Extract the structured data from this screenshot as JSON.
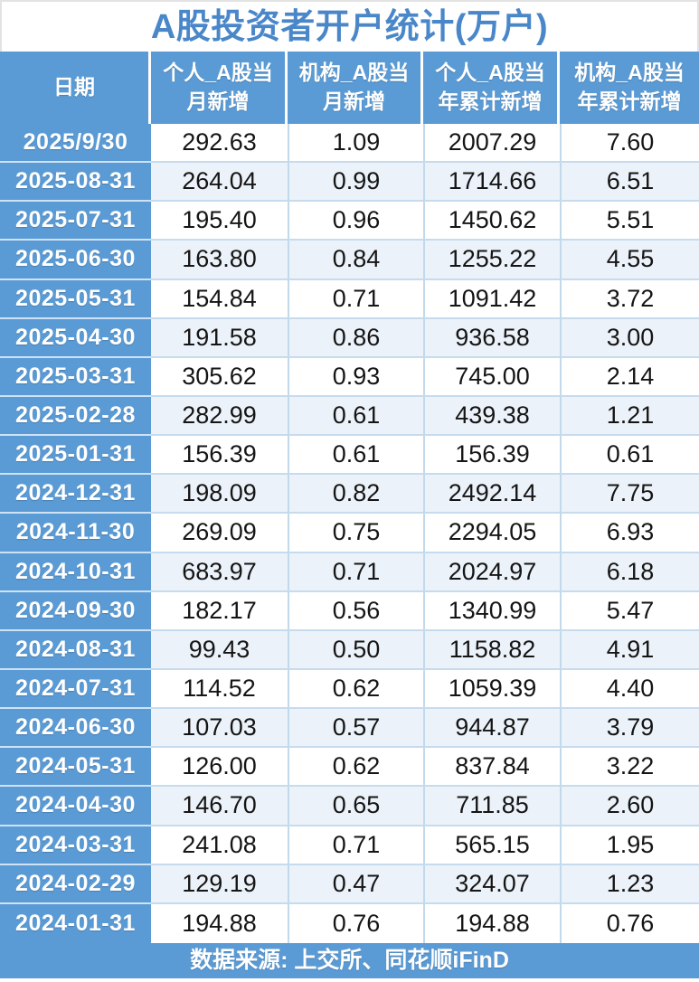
{
  "title": "A股投资者开户统计(万户)",
  "header_display": [
    "日期",
    "个人_A股当\n月新增",
    "机构_A股当\n月新增",
    "个人_A股当\n年累计新增",
    "机构_A股当\n年累计新增"
  ],
  "footer": {
    "source_label": "数据来源: 上交所、同花顺iFinD"
  },
  "colors": {
    "accent_blue": "#5b9bd5",
    "alt_row_blue": "#ecf2f9",
    "gridline_blue": "#c2d9ec",
    "title_text_blue": "#4a87c9",
    "header_text": "#ffffff",
    "value_text": "#151515"
  },
  "chart_data": {
    "type": "table",
    "title": "A股投资者开户统计(万户)",
    "columns": [
      "日期",
      "个人_A股当月新增",
      "机构_A股当月新增",
      "个人_A股当年累计新增",
      "机构_A股当年累计新增"
    ],
    "rows": [
      [
        "2025/9/30",
        "292.63",
        "1.09",
        "2007.29",
        "7.60"
      ],
      [
        "2025-08-31",
        "264.04",
        "0.99",
        "1714.66",
        "6.51"
      ],
      [
        "2025-07-31",
        "195.40",
        "0.96",
        "1450.62",
        "5.51"
      ],
      [
        "2025-06-30",
        "163.80",
        "0.84",
        "1255.22",
        "4.55"
      ],
      [
        "2025-05-31",
        "154.84",
        "0.71",
        "1091.42",
        "3.72"
      ],
      [
        "2025-04-30",
        "191.58",
        "0.86",
        "936.58",
        "3.00"
      ],
      [
        "2025-03-31",
        "305.62",
        "0.93",
        "745.00",
        "2.14"
      ],
      [
        "2025-02-28",
        "282.99",
        "0.61",
        "439.38",
        "1.21"
      ],
      [
        "2025-01-31",
        "156.39",
        "0.61",
        "156.39",
        "0.61"
      ],
      [
        "2024-12-31",
        "198.09",
        "0.82",
        "2492.14",
        "7.75"
      ],
      [
        "2024-11-30",
        "269.09",
        "0.75",
        "2294.05",
        "6.93"
      ],
      [
        "2024-10-31",
        "683.97",
        "0.71",
        "2024.97",
        "6.18"
      ],
      [
        "2024-09-30",
        "182.17",
        "0.56",
        "1340.99",
        "5.47"
      ],
      [
        "2024-08-31",
        "99.43",
        "0.50",
        "1158.82",
        "4.91"
      ],
      [
        "2024-07-31",
        "114.52",
        "0.62",
        "1059.39",
        "4.40"
      ],
      [
        "2024-06-30",
        "107.03",
        "0.57",
        "944.87",
        "3.79"
      ],
      [
        "2024-05-31",
        "126.00",
        "0.62",
        "837.84",
        "3.22"
      ],
      [
        "2024-04-30",
        "146.70",
        "0.65",
        "711.85",
        "2.60"
      ],
      [
        "2024-03-31",
        "241.08",
        "0.71",
        "565.15",
        "1.95"
      ],
      [
        "2024-02-29",
        "129.19",
        "0.47",
        "324.07",
        "1.23"
      ],
      [
        "2024-01-31",
        "194.88",
        "0.76",
        "194.88",
        "0.76"
      ]
    ],
    "source": "数据来源: 上交所、同花顺iFinD"
  }
}
